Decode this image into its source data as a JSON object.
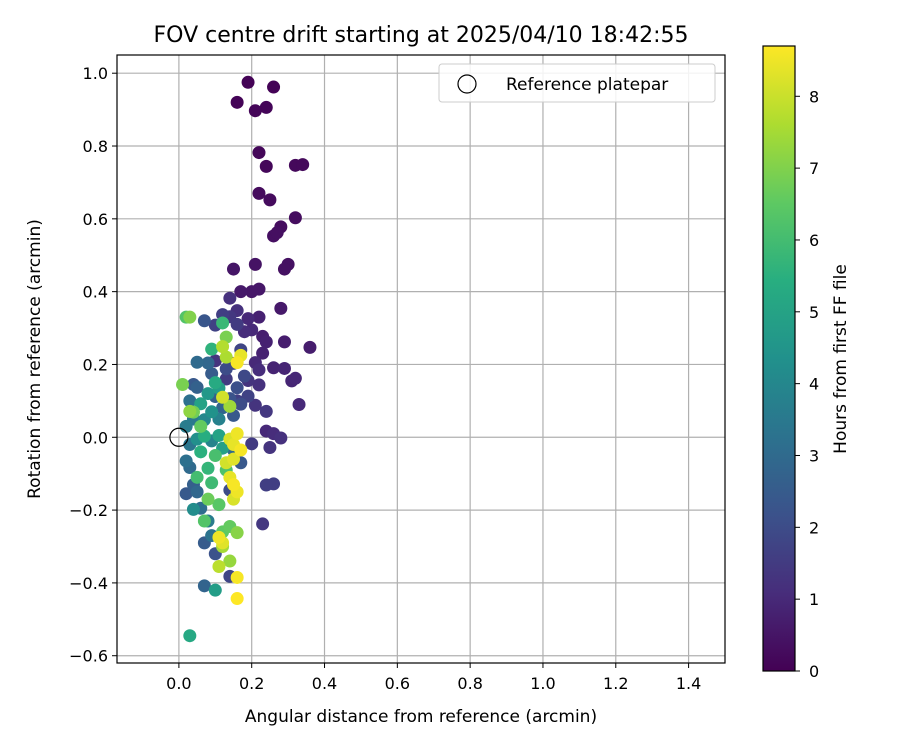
{
  "chart_data": {
    "type": "scatter",
    "title": "FOV centre drift starting at 2025/04/10 18:42:55",
    "xlabel": "Angular distance from reference (arcmin)",
    "ylabel": "Rotation from reference (arcmin)",
    "xlim": [
      -0.17,
      1.5
    ],
    "ylim": [
      -0.62,
      1.05
    ],
    "xticks": [
      "0.0",
      "0.2",
      "0.4",
      "0.6",
      "0.8",
      "1.0",
      "1.2",
      "1.4"
    ],
    "xtick_values": [
      0,
      0.2,
      0.4,
      0.6,
      0.8,
      1.0,
      1.2,
      1.4
    ],
    "yticks": [
      "−0.6",
      "−0.4",
      "−0.2",
      "0.0",
      "0.2",
      "0.4",
      "0.6",
      "0.8",
      "1.0"
    ],
    "ytick_values": [
      -0.6,
      -0.4,
      -0.2,
      0,
      0.2,
      0.4,
      0.6,
      0.8,
      1.0
    ],
    "grid": true,
    "legend": {
      "position": "top-right",
      "entries": [
        "Reference platepar"
      ]
    },
    "reference_point": {
      "x": 0,
      "y": 0,
      "label": "Reference platepar"
    },
    "colorbar": {
      "label": "Hours from first FF file",
      "colormap": "viridis",
      "range": [
        0,
        8.7
      ],
      "ticks": [
        "0",
        "1",
        "2",
        "3",
        "4",
        "5",
        "6",
        "7",
        "8"
      ],
      "tick_values": [
        0,
        1,
        2,
        3,
        4,
        5,
        6,
        7,
        8
      ]
    },
    "points": [
      [
        0.19,
        0.975,
        0.05
      ],
      [
        0.26,
        0.962,
        0.05
      ],
      [
        0.16,
        0.92,
        0.08
      ],
      [
        0.24,
        0.906,
        0.1
      ],
      [
        0.21,
        0.897,
        0.1
      ],
      [
        0.22,
        0.782,
        0.15
      ],
      [
        0.24,
        0.744,
        0.15
      ],
      [
        0.32,
        0.747,
        0.2
      ],
      [
        0.34,
        0.749,
        0.2
      ],
      [
        0.22,
        0.67,
        0.25
      ],
      [
        0.25,
        0.652,
        0.25
      ],
      [
        0.32,
        0.603,
        0.3
      ],
      [
        0.28,
        0.578,
        0.3
      ],
      [
        0.26,
        0.553,
        0.35
      ],
      [
        0.27,
        0.562,
        0.35
      ],
      [
        0.3,
        0.475,
        0.4
      ],
      [
        0.29,
        0.462,
        0.4
      ],
      [
        0.21,
        0.475,
        0.45
      ],
      [
        0.15,
        0.462,
        0.5
      ],
      [
        0.22,
        0.407,
        0.55
      ],
      [
        0.2,
        0.4,
        0.55
      ],
      [
        0.17,
        0.4,
        0.6
      ],
      [
        0.28,
        0.354,
        0.6
      ],
      [
        0.36,
        0.247,
        0.7
      ],
      [
        0.29,
        0.262,
        0.7
      ],
      [
        0.23,
        0.277,
        0.75
      ],
      [
        0.23,
        0.231,
        0.8
      ],
      [
        0.24,
        0.262,
        0.8
      ],
      [
        0.26,
        0.191,
        0.85
      ],
      [
        0.29,
        0.189,
        0.9
      ],
      [
        0.31,
        0.155,
        0.9
      ],
      [
        0.32,
        0.162,
        0.95
      ],
      [
        0.33,
        0.09,
        1.0
      ],
      [
        0.22,
        0.33,
        0.8
      ],
      [
        0.19,
        0.326,
        1.0
      ],
      [
        0.14,
        0.382,
        1.2
      ],
      [
        0.16,
        0.348,
        1.2
      ],
      [
        0.2,
        0.295,
        1.0
      ],
      [
        0.18,
        0.29,
        1.1
      ],
      [
        0.21,
        0.205,
        1.0
      ],
      [
        0.22,
        0.185,
        1.1
      ],
      [
        0.22,
        0.144,
        1.2
      ],
      [
        0.19,
        0.156,
        1.3
      ],
      [
        0.21,
        0.088,
        1.3
      ],
      [
        0.24,
        0.071,
        1.4
      ],
      [
        0.24,
        0.017,
        1.0
      ],
      [
        0.26,
        0.01,
        1.1
      ],
      [
        0.28,
        -0.002,
        1.2
      ],
      [
        0.25,
        -0.028,
        1.3
      ],
      [
        0.2,
        -0.018,
        1.5
      ],
      [
        0.26,
        -0.128,
        1.6
      ],
      [
        0.24,
        -0.131,
        1.6
      ],
      [
        0.23,
        -0.238,
        1.4
      ],
      [
        0.14,
        0.331,
        1.4
      ],
      [
        0.12,
        0.337,
        1.6
      ],
      [
        0.1,
        0.308,
        1.7
      ],
      [
        0.16,
        0.31,
        1.5
      ],
      [
        0.17,
        0.24,
        1.8
      ],
      [
        0.15,
        0.203,
        1.8
      ],
      [
        0.13,
        0.188,
        2.0
      ],
      [
        0.18,
        0.168,
        1.9
      ],
      [
        0.16,
        0.136,
        2.1
      ],
      [
        0.14,
        0.106,
        2.2
      ],
      [
        0.17,
        0.091,
        2.0
      ],
      [
        0.19,
        0.113,
        1.7
      ],
      [
        0.15,
        0.06,
        2.4
      ],
      [
        0.1,
        0.112,
        2.6
      ],
      [
        0.12,
        0.081,
        2.8
      ],
      [
        0.07,
        0.32,
        2.3
      ],
      [
        0.04,
        0.145,
        2.4
      ],
      [
        0.05,
        0.137,
        2.7
      ],
      [
        0.09,
        0.175,
        2.5
      ],
      [
        0.08,
        0.204,
        2.9
      ],
      [
        0.05,
        0.206,
        3.0
      ],
      [
        0.03,
        0.1,
        3.2
      ],
      [
        0.04,
        0.05,
        3.5
      ],
      [
        0.02,
        0.03,
        3.6
      ],
      [
        0.03,
        -0.02,
        3.4
      ],
      [
        0.02,
        -0.065,
        3.2
      ],
      [
        0.03,
        -0.083,
        3.0
      ],
      [
        0.04,
        -0.13,
        2.6
      ],
      [
        0.02,
        -0.155,
        2.4
      ],
      [
        0.05,
        -0.15,
        2.9
      ],
      [
        0.06,
        -0.195,
        3.1
      ],
      [
        0.04,
        -0.198,
        4.2
      ],
      [
        0.08,
        -0.23,
        3.6
      ],
      [
        0.07,
        -0.29,
        2.5
      ],
      [
        0.09,
        -0.27,
        3.3
      ],
      [
        0.1,
        -0.32,
        2.2
      ],
      [
        0.14,
        -0.382,
        1.8
      ],
      [
        0.07,
        -0.408,
        2.8
      ],
      [
        0.1,
        -0.42,
        4.8
      ],
      [
        0.03,
        -0.545,
        5.2
      ],
      [
        0.07,
        0.048,
        4.0
      ],
      [
        0.09,
        0.07,
        4.4
      ],
      [
        0.08,
        0.12,
        4.6
      ],
      [
        0.06,
        0.092,
        5.0
      ],
      [
        0.1,
        0.15,
        5.3
      ],
      [
        0.11,
        0.135,
        4.8
      ],
      [
        0.09,
        0.242,
        5.6
      ],
      [
        0.12,
        0.314,
        5.8
      ],
      [
        0.07,
        0.003,
        5.4
      ],
      [
        0.11,
        0.005,
        5.0
      ],
      [
        0.12,
        -0.03,
        4.9
      ],
      [
        0.06,
        -0.04,
        5.5
      ],
      [
        0.08,
        -0.085,
        5.7
      ],
      [
        0.05,
        -0.11,
        6.0
      ],
      [
        0.09,
        -0.125,
        5.9
      ],
      [
        0.1,
        -0.05,
        6.1
      ],
      [
        0.13,
        -0.09,
        6.2
      ],
      [
        0.07,
        -0.23,
        6.3
      ],
      [
        0.12,
        -0.26,
        6.5
      ],
      [
        0.14,
        -0.245,
        6.6
      ],
      [
        0.08,
        -0.17,
        6.7
      ],
      [
        0.11,
        -0.185,
        6.4
      ],
      [
        0.16,
        -0.262,
        7.1
      ],
      [
        0.12,
        -0.3,
        7.5
      ],
      [
        0.14,
        -0.34,
        7.3
      ],
      [
        0.11,
        -0.355,
        7.8
      ],
      [
        0.02,
        0.33,
        6.3
      ],
      [
        0.03,
        0.33,
        7.0
      ],
      [
        0.01,
        0.145,
        6.9
      ],
      [
        0.03,
        0.071,
        7.2
      ],
      [
        0.04,
        0.069,
        6.8
      ],
      [
        0.06,
        0.03,
        6.6
      ],
      [
        0.14,
        0.085,
        7.4
      ],
      [
        0.13,
        0.275,
        6.9
      ],
      [
        0.13,
        0.22,
        7.6
      ],
      [
        0.12,
        0.249,
        7.7
      ],
      [
        0.14,
        -0.005,
        8.2
      ],
      [
        0.15,
        -0.02,
        8.4
      ],
      [
        0.16,
        0.01,
        8.5
      ],
      [
        0.17,
        -0.035,
        8.6
      ],
      [
        0.15,
        -0.06,
        8.3
      ],
      [
        0.13,
        -0.07,
        8.1
      ],
      [
        0.14,
        -0.11,
        8.4
      ],
      [
        0.15,
        -0.13,
        8.6
      ],
      [
        0.16,
        -0.15,
        8.5
      ],
      [
        0.15,
        -0.17,
        8.2
      ],
      [
        0.11,
        -0.275,
        8.5
      ],
      [
        0.12,
        -0.29,
        8.3
      ],
      [
        0.16,
        -0.385,
        8.6
      ],
      [
        0.16,
        -0.443,
        8.7
      ],
      [
        0.17,
        0.225,
        8.4
      ],
      [
        0.16,
        0.205,
        8.6
      ],
      [
        0.12,
        0.11,
        8.1
      ],
      [
        0.14,
        -0.145,
        2.0
      ],
      [
        0.17,
        -0.07,
        2.4
      ],
      [
        0.15,
        -0.035,
        3.0
      ],
      [
        0.1,
        0.21,
        1.3
      ],
      [
        0.11,
        0.05,
        3.8
      ],
      [
        0.05,
        -0.005,
        4.3
      ],
      [
        0.09,
        -0.01,
        3.9
      ],
      [
        0.13,
        0.16,
        1.5
      ],
      [
        0.16,
        0.1,
        1.6
      ]
    ]
  }
}
